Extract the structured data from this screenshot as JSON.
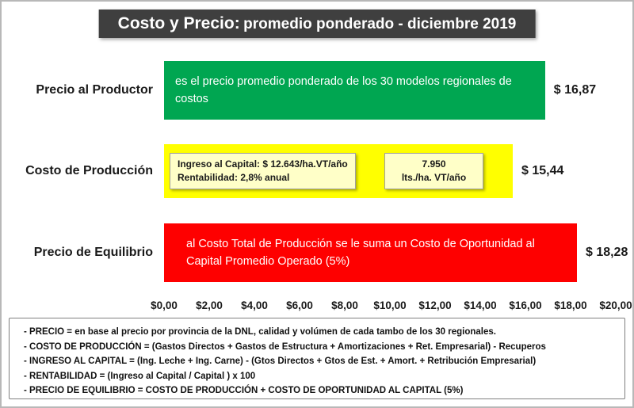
{
  "title": {
    "main": "Costo  y Precio:",
    "sub": "promedio ponderado - diciembre 2019"
  },
  "chart_data": {
    "type": "bar",
    "orientation": "horizontal",
    "title": "Costo y Precio: promedio ponderado - diciembre 2019",
    "categories": [
      "Precio al Productor",
      "Costo de Producción",
      "Precio de Equilibrio"
    ],
    "values": [
      16.87,
      15.44,
      18.28
    ],
    "value_labels": [
      "$ 16,87",
      "$ 15,44",
      "$ 18,28"
    ],
    "bar_colors": [
      "#00a651",
      "#ffff00",
      "#fe0000"
    ],
    "annotations": {
      "precio_al_productor": "es el precio promedio ponderado de los 30 modelos regionales de costos",
      "precio_de_equilibrio": "al Costo Total de Producción se le suma un Costo de Oportunidad al Capital Promedio Operado (5%)"
    },
    "inner_boxes": [
      {
        "lines": [
          "Ingreso al Capital: $ 12.643/ha.VT/año",
          "Rentabilidad: 2,8% anual"
        ]
      },
      {
        "lines": [
          "7.950",
          "lts./ha. VT/año"
        ]
      }
    ],
    "x_ticks": [
      "$0,00",
      "$2,00",
      "$4,00",
      "$6,00",
      "$8,00",
      "$10,00",
      "$12,00",
      "$14,00",
      "$16,00",
      "$18,00",
      "$20,00"
    ],
    "xlim": [
      0,
      20
    ],
    "grid": false,
    "legend": false
  },
  "footnotes": [
    "- PRECIO = en base al precio por provincia de la DNL, calidad y volúmen de cada tambo de los 30 regionales.",
    "- COSTO DE PRODUCCIÓN = (Gastos Directos + Gastos de Estructura + Amortizaciones + Ret. Empresarial) - Recuperos",
    "- INGRESO AL CAPITAL = (Ing. Leche + Ing. Carne) - (Gtos Directos + Gtos de Est. + Amort. + Retribución Empresarial)",
    "- RENTABILIDAD = (Ingreso al Capital / Capital ) x 100",
    "- PRECIO DE EQUILIBRIO = COSTO DE PRODUCCIÓN + COSTO DE OPORTUNIDAD AL CAPITAL (5%)"
  ]
}
